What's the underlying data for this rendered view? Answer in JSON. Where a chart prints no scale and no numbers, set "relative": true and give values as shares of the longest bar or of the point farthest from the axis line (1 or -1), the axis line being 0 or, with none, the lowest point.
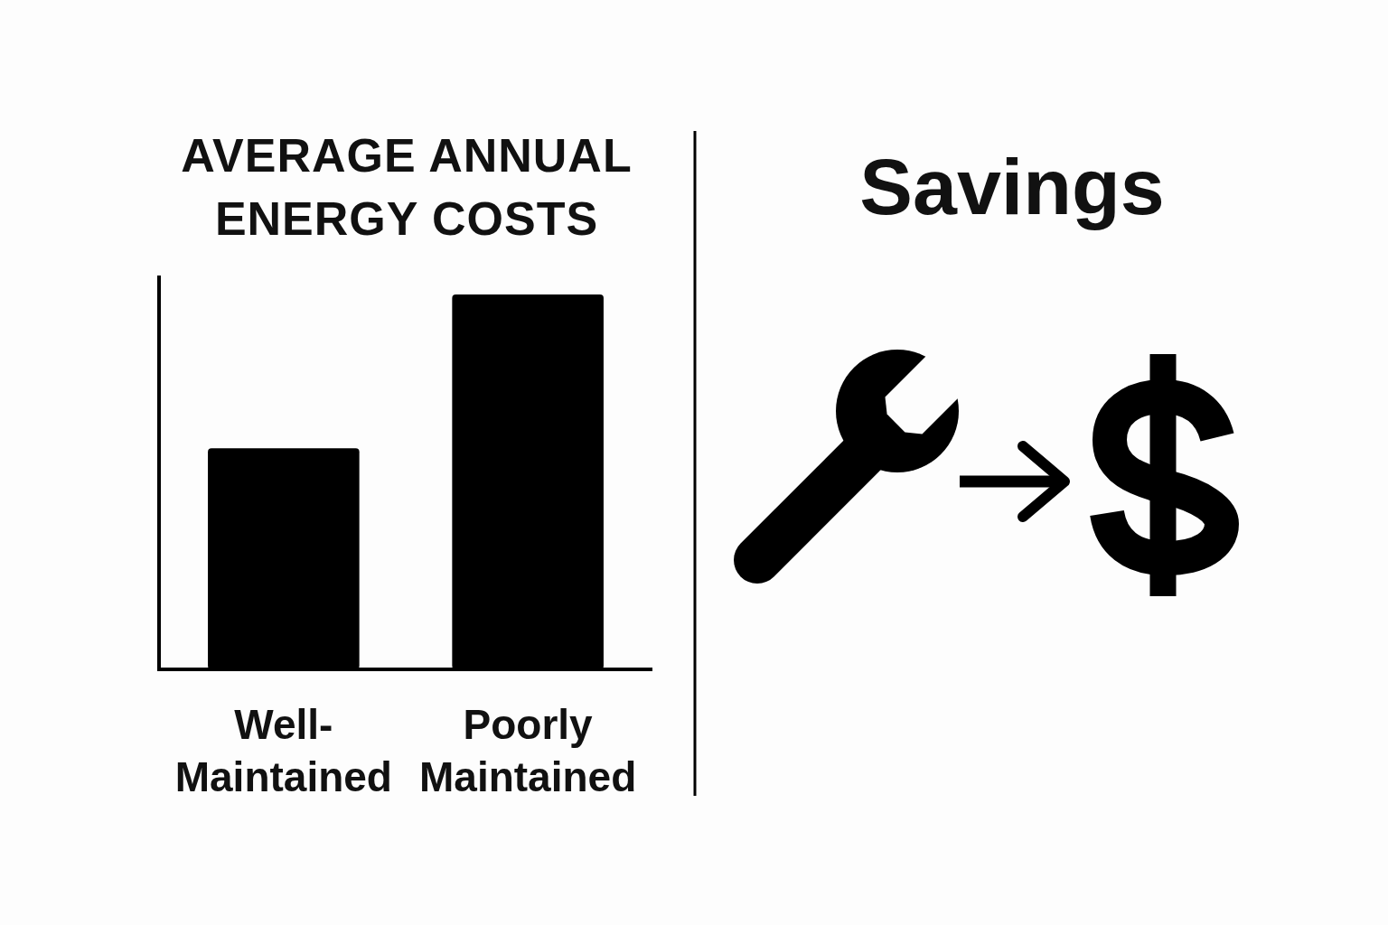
{
  "chart_data": [
    {
      "type": "bar",
      "title": "AVERAGE ANNUAL ENERGY COSTS",
      "categories": [
        "Well-Maintained",
        "Poorly Maintained"
      ],
      "values": [
        0.59,
        1
      ],
      "color": "#000000",
      "relative": true
    },
    {
      "type": "other",
      "title": "Savings"
    }
  ]
}
